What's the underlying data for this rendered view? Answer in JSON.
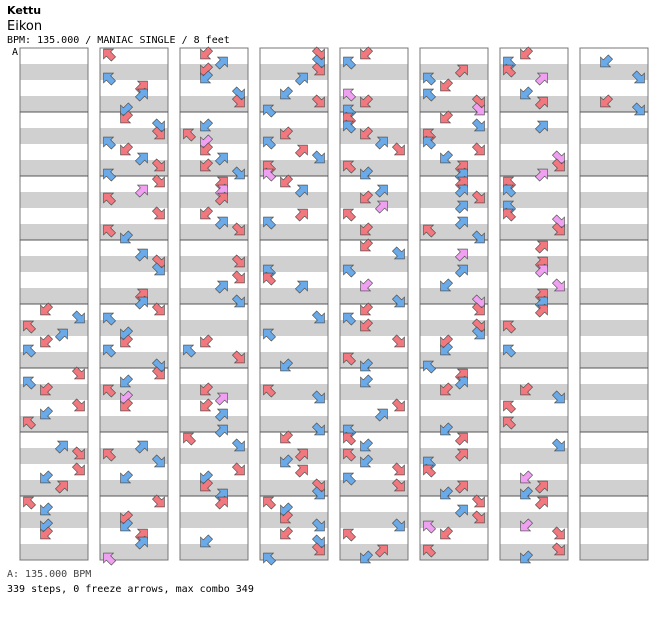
{
  "header": {
    "author": "Kettu",
    "song": "Eikon",
    "info": "BPM: 135.000 / MANIAC SINGLE / 8 feet",
    "marker": "A"
  },
  "footer": {
    "bpm_line": "A: 135.000 BPM",
    "stats_line": "339 steps, 0 freeze arrows, max combo 349"
  },
  "colors": {
    "background": "#ffffff",
    "band_gray": "#d0d0d0",
    "column_border": "#777777",
    "measure_line": "#555555",
    "arrow_red": "#f0787e",
    "arrow_blue": "#6aaae8",
    "arrow_pink": "#f0a0f0"
  },
  "chart_data": {
    "type": "step-chart",
    "columns": 8,
    "measures_per_column": 8,
    "lanes": [
      "left",
      "down",
      "up",
      "right"
    ],
    "steps": 339,
    "freeze_arrows": 0,
    "max_combo": 349,
    "bpm": 135.0
  }
}
